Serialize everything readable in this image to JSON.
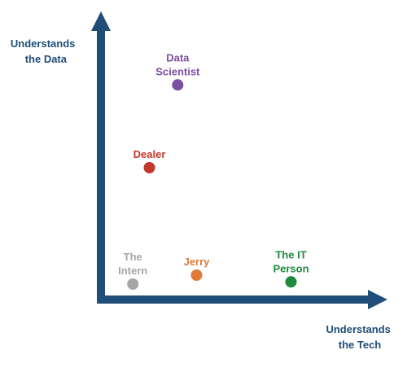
{
  "chart_data": {
    "type": "scatter",
    "ylabel_lines": [
      "Understands",
      "the Data"
    ],
    "xlabel_lines": [
      "Understands",
      "the Tech"
    ],
    "xlim": [
      0,
      10
    ],
    "ylim": [
      0,
      10
    ],
    "grid": false,
    "axis_color": "#1f4e79",
    "axis_label_color": "#1f4e79",
    "points": [
      {
        "label_lines": [
          "Data",
          "Scientist"
        ],
        "x": 2.7,
        "y": 9.3,
        "color": "#7b4fa2"
      },
      {
        "label_lines": [
          "Dealer"
        ],
        "x": 1.5,
        "y": 5.6,
        "color": "#c0392b"
      },
      {
        "label_lines": [
          "The",
          "Intern"
        ],
        "x": 0.8,
        "y": 0.4,
        "color": "#a6a6a6"
      },
      {
        "label_lines": [
          "Jerry"
        ],
        "x": 3.5,
        "y": 0.8,
        "color": "#e07b39"
      },
      {
        "label_lines": [
          "The IT",
          "Person"
        ],
        "x": 7.5,
        "y": 0.5,
        "color": "#1e8a3c"
      }
    ]
  }
}
